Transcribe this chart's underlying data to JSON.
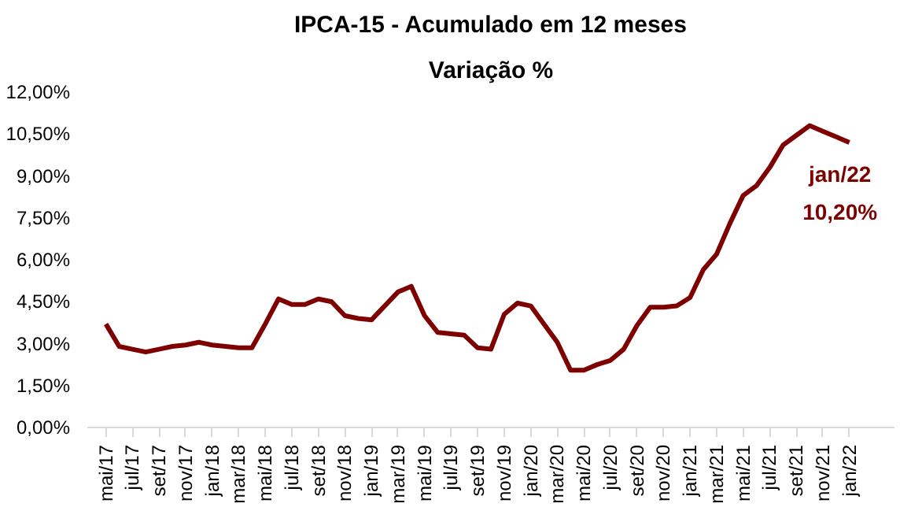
{
  "chart_data": {
    "type": "line",
    "title": "IPCA-15 - Acumulado em 12 meses",
    "subtitle": "Variação %",
    "categories": [
      "mai/17",
      null,
      "jul/17",
      null,
      "set/17",
      null,
      "nov/17",
      null,
      "jan/18",
      null,
      "mar/18",
      null,
      "mai/18",
      null,
      "jul/18",
      null,
      "set/18",
      null,
      "nov/18",
      null,
      "jan/19",
      null,
      "mar/19",
      null,
      "mai/19",
      null,
      "jul/19",
      null,
      "set/19",
      null,
      "nov/19",
      null,
      "jan/20",
      null,
      "mar/20",
      null,
      "mai/20",
      null,
      "jul/20",
      null,
      "set/20",
      null,
      "nov/20",
      null,
      "jan/21",
      null,
      "mar/21",
      null,
      "mai/21",
      null,
      "jul/21",
      null,
      "set/21",
      null,
      "nov/21",
      null,
      "jan/22"
    ],
    "series": [
      {
        "color": "#7f0000",
        "values": [
          3.7,
          2.9,
          2.8,
          2.7,
          2.8,
          2.9,
          2.95,
          3.05,
          2.95,
          2.9,
          2.85,
          2.85,
          3.7,
          4.6,
          4.4,
          4.4,
          4.6,
          4.5,
          4.0,
          3.9,
          3.85,
          4.35,
          4.85,
          5.05,
          4.0,
          3.4,
          3.35,
          3.3,
          2.85,
          2.8,
          4.05,
          4.45,
          4.35,
          3.7,
          3.05,
          2.05,
          2.05,
          2.25,
          2.4,
          2.8,
          3.65,
          4.3,
          4.3,
          4.35,
          4.65,
          5.65,
          6.2,
          7.3,
          8.3,
          8.65,
          9.3,
          10.1,
          10.45,
          10.8,
          10.6,
          10.4,
          10.2
        ]
      }
    ],
    "ylim": [
      0,
      12
    ],
    "yticks": [
      {
        "value": 0,
        "label": "0,00%"
      },
      {
        "value": 1.5,
        "label": "1,50%"
      },
      {
        "value": 3,
        "label": "3,00%"
      },
      {
        "value": 4.5,
        "label": "4,50%"
      },
      {
        "value": 6,
        "label": "6,00%"
      },
      {
        "value": 7.5,
        "label": "7,50%"
      },
      {
        "value": 9,
        "label": "9,00%"
      },
      {
        "value": 10.5,
        "label": "10,50%"
      },
      {
        "value": 12,
        "label": "12,00%"
      }
    ],
    "annotations": [
      {
        "text": "jan/22\n10,20%",
        "x": "jan/22",
        "y": 10.2
      }
    ],
    "grid": false,
    "marker": "none",
    "line_style": "solid"
  }
}
